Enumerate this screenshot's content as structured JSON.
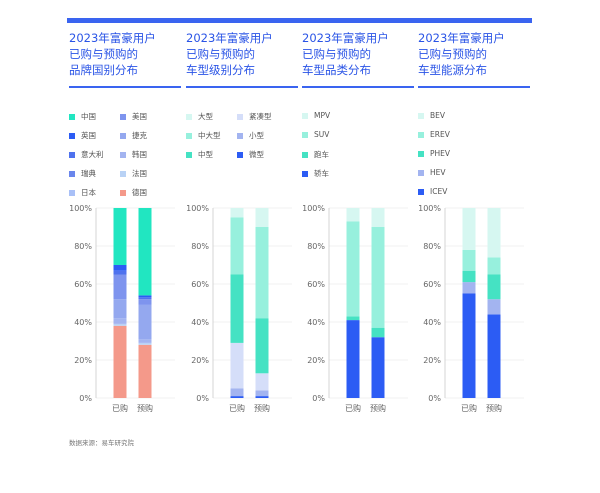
{
  "source": "数据来源：易车研究院",
  "colors": {
    "title": "#2a54e6",
    "bar": "#3a64f0",
    "axis": "#666666",
    "grid": "#e6e6e6"
  },
  "chart_data": [
    {
      "type": "bar",
      "stacked": true,
      "title": "2023年富豪用户\n已购与预购的\n品牌国别分布",
      "categories": [
        "已购",
        "预购"
      ],
      "ylim": [
        0,
        100
      ],
      "yticks": [
        "0%",
        "20%",
        "40%",
        "60%",
        "80%",
        "100%"
      ],
      "series": [
        {
          "name": "德国",
          "color": "#f4998a",
          "values": [
            38,
            28
          ]
        },
        {
          "name": "法国",
          "color": "#b9d2f5",
          "values": [
            1,
            1
          ]
        },
        {
          "name": "韩国",
          "color": "#a3b4f0",
          "values": [
            3,
            2
          ]
        },
        {
          "name": "捷克",
          "color": "#94a8ef",
          "values": [
            10,
            18
          ]
        },
        {
          "name": "美国",
          "color": "#7e94ee",
          "values": [
            13,
            3
          ]
        },
        {
          "name": "日本",
          "color": "#a9c0f7",
          "values": [
            0,
            0
          ]
        },
        {
          "name": "瑞典",
          "color": "#6a86ec",
          "values": [
            0,
            0
          ]
        },
        {
          "name": "意大利",
          "color": "#4f72ee",
          "values": [
            2,
            1
          ]
        },
        {
          "name": "英国",
          "color": "#2c5cf4",
          "values": [
            3,
            1
          ]
        },
        {
          "name": "中国",
          "color": "#21e6c1",
          "values": [
            30,
            46
          ]
        }
      ],
      "legend": [
        {
          "name": "中国",
          "color": "#21e6c1"
        },
        {
          "name": "美国",
          "color": "#7e94ee"
        },
        {
          "name": "英国",
          "color": "#2c5cf4"
        },
        {
          "name": "捷克",
          "color": "#94a8ef"
        },
        {
          "name": "意大利",
          "color": "#4f72ee"
        },
        {
          "name": "韩国",
          "color": "#a3b4f0"
        },
        {
          "name": "瑞典",
          "color": "#6a86ec"
        },
        {
          "name": "法国",
          "color": "#b9d2f5"
        },
        {
          "name": "日本",
          "color": "#a9c0f7"
        },
        {
          "name": "德国",
          "color": "#f4998a"
        }
      ]
    },
    {
      "type": "bar",
      "stacked": true,
      "title": "2023年富豪用户\n已购与预购的\n车型级别分布",
      "categories": [
        "已购",
        "预购"
      ],
      "ylim": [
        0,
        100
      ],
      "yticks": [
        "0%",
        "20%",
        "40%",
        "60%",
        "80%",
        "100%"
      ],
      "series": [
        {
          "name": "微型",
          "color": "#2c5cf4",
          "values": [
            1,
            1
          ]
        },
        {
          "name": "小型",
          "color": "#a3b4f0",
          "values": [
            4,
            3
          ]
        },
        {
          "name": "紧凑型",
          "color": "#d5def9",
          "values": [
            24,
            9
          ]
        },
        {
          "name": "中型",
          "color": "#45e2c3",
          "values": [
            36,
            29
          ]
        },
        {
          "name": "中大型",
          "color": "#97f0dd",
          "values": [
            30,
            48
          ]
        },
        {
          "name": "大型",
          "color": "#d6f7f1",
          "values": [
            5,
            10
          ]
        }
      ],
      "legend": [
        {
          "name": "大型",
          "color": "#d6f7f1"
        },
        {
          "name": "紧凑型",
          "color": "#d5def9"
        },
        {
          "name": "中大型",
          "color": "#97f0dd"
        },
        {
          "name": "小型",
          "color": "#a3b4f0"
        },
        {
          "name": "中型",
          "color": "#45e2c3"
        },
        {
          "name": "微型",
          "color": "#2c5cf4"
        }
      ]
    },
    {
      "type": "bar",
      "stacked": true,
      "title": "2023年富豪用户\n已购与预购的\n车型品类分布",
      "categories": [
        "已购",
        "预购"
      ],
      "ylim": [
        0,
        100
      ],
      "yticks": [
        "0%",
        "20%",
        "40%",
        "60%",
        "80%",
        "100%"
      ],
      "series": [
        {
          "name": "轿车",
          "color": "#2c5cf4",
          "values": [
            41,
            32
          ]
        },
        {
          "name": "跑车",
          "color": "#45e2c3",
          "values": [
            2,
            5
          ]
        },
        {
          "name": "SUV",
          "color": "#97f0dd",
          "values": [
            50,
            53
          ]
        },
        {
          "name": "MPV",
          "color": "#d6f7f1",
          "values": [
            7,
            10
          ]
        }
      ],
      "legend": [
        {
          "name": "MPV",
          "color": "#d6f7f1"
        },
        {
          "name": "SUV",
          "color": "#97f0dd"
        },
        {
          "name": "跑车",
          "color": "#45e2c3"
        },
        {
          "name": "轿车",
          "color": "#2c5cf4"
        }
      ]
    },
    {
      "type": "bar",
      "stacked": true,
      "title": "2023年富豪用户\n已购与预购的\n车型能源分布",
      "categories": [
        "已购",
        "预购"
      ],
      "ylim": [
        0,
        100
      ],
      "yticks": [
        "0%",
        "20%",
        "40%",
        "60%",
        "80%",
        "100%"
      ],
      "series": [
        {
          "name": "ICEV",
          "color": "#2c5cf4",
          "values": [
            55,
            44
          ]
        },
        {
          "name": "HEV",
          "color": "#a3b4f0",
          "values": [
            6,
            8
          ]
        },
        {
          "name": "PHEV",
          "color": "#45e2c3",
          "values": [
            6,
            13
          ]
        },
        {
          "name": "EREV",
          "color": "#97f0dd",
          "values": [
            11,
            9
          ]
        },
        {
          "name": "BEV",
          "color": "#d6f7f1",
          "values": [
            22,
            26
          ]
        }
      ],
      "legend": [
        {
          "name": "BEV",
          "color": "#d6f7f1"
        },
        {
          "name": "EREV",
          "color": "#97f0dd"
        },
        {
          "name": "PHEV",
          "color": "#45e2c3"
        },
        {
          "name": "HEV",
          "color": "#a3b4f0"
        },
        {
          "name": "ICEV",
          "color": "#2c5cf4"
        }
      ]
    }
  ]
}
